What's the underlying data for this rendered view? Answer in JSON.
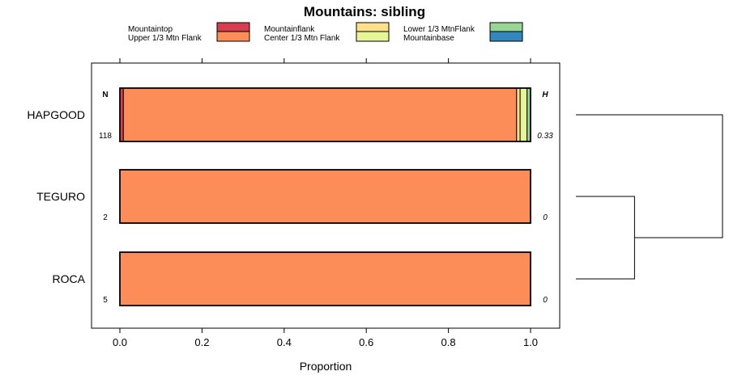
{
  "chart_data": {
    "type": "bar",
    "orientation": "horizontal",
    "stacked": true,
    "title": "Mountains: sibling",
    "xlabel": "Proportion",
    "ylabel": "",
    "xlim": [
      -0.07,
      1.07
    ],
    "x_ticks": [
      0.0,
      0.2,
      0.4,
      0.6,
      0.8,
      1.0
    ],
    "x_tick_labels": [
      "0.0",
      "0.2",
      "0.4",
      "0.6",
      "0.8",
      "1.0"
    ],
    "grid": false,
    "legend_position": "top",
    "categories": [
      "HAPGOOD",
      "TEGURO",
      "ROCA"
    ],
    "n_header": "N",
    "h_header": "H",
    "n_values": [
      "118",
      "2",
      "5"
    ],
    "h_values": [
      "0.33",
      "0",
      "0"
    ],
    "series": [
      {
        "name": "Mountaintop",
        "color": "#D53E4F",
        "values": [
          0.0085,
          0,
          0
        ]
      },
      {
        "name": "Upper 1/3 Mtn Flank",
        "color": "#FC8D59",
        "values": [
          0.9576,
          1.0,
          1.0
        ]
      },
      {
        "name": "Mountainflank",
        "color": "#FEE08B",
        "values": [
          0.0085,
          0,
          0
        ]
      },
      {
        "name": "Center 1/3 Mtn Flank",
        "color": "#E6F598",
        "values": [
          0.0169,
          0,
          0
        ]
      },
      {
        "name": "Lower 1/3 MtnFlank",
        "color": "#99D594",
        "values": [
          0.0085,
          0,
          0
        ]
      },
      {
        "name": "Mountainbase",
        "color": "#3288BD",
        "values": [
          0,
          0,
          0
        ]
      }
    ],
    "dendrogram": {
      "merges": [
        {
          "left": "TEGURO",
          "right": "ROCA",
          "height": 0.4
        },
        {
          "left": "HAPGOOD",
          "right": "TEGURO+ROCA",
          "height": 1.0
        }
      ]
    }
  }
}
